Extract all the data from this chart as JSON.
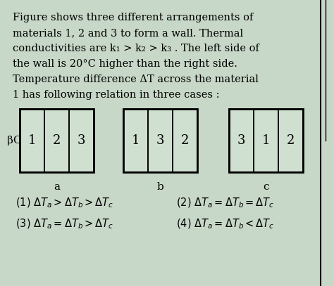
{
  "background_color": "#c8d8c8",
  "text_lines": [
    "Figure shows three different arrangements of",
    "materials 1, 2 and 3 to form a wall. Thermal",
    "conductivities are k₁ > k₂ > k₃ . The left side of",
    "the wall is 20°C higher than the right side.",
    "Temperature difference ΔT across the material",
    "1 has following relation in three cases :"
  ],
  "diagrams": [
    {
      "label": "a",
      "sections": [
        "1",
        "2",
        "3"
      ]
    },
    {
      "label": "b",
      "sections": [
        "1",
        "3",
        "2"
      ]
    },
    {
      "label": "c",
      "sections": [
        "3",
        "1",
        "2"
      ]
    }
  ],
  "answers": [
    "(1) ΔTₐ > ΔTᵇ > ΔTၣ",
    "(3) ΔTₐ = ΔTᵇ > ΔTၣ",
    "(2) ΔTₐ = ΔTᵇ = ΔTၣ",
    "(4) ΔTₐ = ΔTᵇ < ΔTၣ"
  ],
  "answer1": "(1) ΔT_a > ΔT_b > ΔT_c",
  "answer2": "(2) ΔT_a = ΔT_b = ΔT_c",
  "answer3": "(3) ΔT_a = ΔT_b > ΔT_c",
  "answer4": "(4) ΔT_a = ΔT_b < ΔT_c",
  "box_color": "#d0e0d0",
  "box_edge_color": "#000000",
  "left_label": "βC",
  "right_bar_color": "#aaaaaa",
  "fig_width": 4.74,
  "fig_height": 4.07,
  "dpi": 100
}
